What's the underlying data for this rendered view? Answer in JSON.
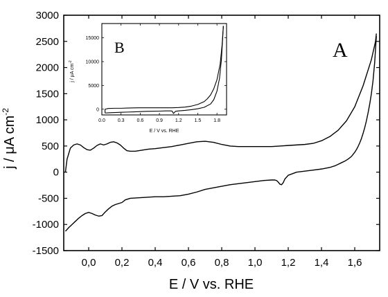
{
  "chart_data": [
    {
      "type": "line",
      "panel_label": "A",
      "xlabel": "E / V vs. RHE",
      "ylabel_main": "j / μA cm",
      "ylabel_sup": "-2",
      "xlim": [
        -0.15,
        1.75
      ],
      "ylim": [
        -1500,
        3000
      ],
      "x_ticks": [
        0.0,
        0.2,
        0.4,
        0.6,
        0.8,
        1.0,
        1.2,
        1.4,
        1.6
      ],
      "x_tick_labels": [
        "0,0",
        "0,2",
        "0,4",
        "0,6",
        "0,8",
        "1,0",
        "1,2",
        "1,4",
        "1,6"
      ],
      "y_ticks": [
        -1500,
        -1000,
        -500,
        0,
        500,
        1000,
        1500,
        2000,
        2500,
        3000
      ],
      "y_tick_labels": [
        "-1500",
        "-1000",
        "-500",
        "0",
        "500",
        "1000",
        "1500",
        "2000",
        "2500",
        "3000"
      ],
      "series": [
        {
          "x": [
            -0.14,
            -0.13,
            -0.11,
            -0.09,
            -0.07,
            -0.05,
            -0.03,
            -0.01,
            0.01,
            0.03,
            0.05,
            0.07,
            0.09,
            0.11,
            0.13,
            0.15,
            0.17,
            0.19,
            0.21,
            0.23,
            0.25,
            0.28,
            0.32,
            0.36,
            0.4,
            0.45,
            0.5,
            0.55,
            0.6,
            0.65,
            0.7,
            0.75,
            0.8,
            0.85,
            0.9,
            0.95,
            1.0,
            1.05,
            1.1,
            1.15,
            1.2,
            1.25,
            1.3,
            1.35,
            1.4,
            1.45,
            1.5,
            1.55,
            1.6,
            1.65,
            1.7,
            1.725,
            1.73
          ],
          "y": [
            0,
            250,
            460,
            520,
            540,
            520,
            470,
            430,
            420,
            460,
            510,
            540,
            520,
            540,
            570,
            580,
            560,
            520,
            460,
            410,
            400,
            400,
            420,
            440,
            450,
            470,
            490,
            520,
            550,
            580,
            590,
            570,
            530,
            500,
            490,
            490,
            490,
            490,
            490,
            500,
            510,
            520,
            530,
            550,
            600,
            680,
            800,
            980,
            1250,
            1650,
            2150,
            2500,
            2650
          ]
        },
        {
          "x": [
            1.73,
            1.72,
            1.71,
            1.7,
            1.69,
            1.68,
            1.67,
            1.66,
            1.65,
            1.64,
            1.63,
            1.62,
            1.61,
            1.6,
            1.58,
            1.56,
            1.54,
            1.52,
            1.5,
            1.48,
            1.45,
            1.4,
            1.35,
            1.3,
            1.25,
            1.2,
            1.18,
            1.17,
            1.16,
            1.15,
            1.14,
            1.13,
            1.12,
            1.1,
            1.05,
            1.0,
            0.95,
            0.9,
            0.85,
            0.8,
            0.75,
            0.7,
            0.65,
            0.6,
            0.55,
            0.5,
            0.45,
            0.4,
            0.35,
            0.3,
            0.25,
            0.22,
            0.2,
            0.18,
            0.16,
            0.14,
            0.12,
            0.1,
            0.08,
            0.06,
            0.04,
            0.02,
            0.0,
            -0.02,
            -0.04,
            -0.06,
            -0.08,
            -0.1,
            -0.12,
            -0.14
          ],
          "y": [
            2600,
            2100,
            1750,
            1500,
            1300,
            1130,
            980,
            850,
            740,
            640,
            560,
            490,
            430,
            380,
            300,
            250,
            210,
            180,
            150,
            120,
            90,
            60,
            40,
            20,
            0,
            -60,
            -130,
            -200,
            -240,
            -230,
            -190,
            -160,
            -150,
            -150,
            -160,
            -180,
            -200,
            -220,
            -240,
            -270,
            -300,
            -330,
            -380,
            -420,
            -450,
            -460,
            -470,
            -470,
            -480,
            -490,
            -500,
            -530,
            -580,
            -600,
            -620,
            -650,
            -700,
            -760,
            -830,
            -840,
            -820,
            -790,
            -770,
            -790,
            -830,
            -880,
            -940,
            -1000,
            -1060,
            -1130
          ]
        }
      ]
    },
    {
      "type": "line",
      "panel_label": "B",
      "xlabel": "E / V vs. RHE",
      "ylabel_main": "j / μA cm",
      "ylabel_sup": "-2",
      "xlim": [
        0,
        1.95
      ],
      "ylim": [
        -1200,
        18000
      ],
      "x_ticks": [
        0.0,
        0.3,
        0.6,
        0.9,
        1.2,
        1.5,
        1.8
      ],
      "x_tick_labels": [
        "0.0",
        "0.3",
        "0.6",
        "0.9",
        "1.2",
        "1.5",
        "1.8"
      ],
      "y_ticks": [
        0,
        5000,
        10000,
        15000
      ],
      "y_tick_labels": [
        "0",
        "5000",
        "10000",
        "15000"
      ],
      "series": [
        {
          "x": [
            0.05,
            0.05,
            0.1,
            0.2,
            0.3,
            0.4,
            0.5,
            0.6,
            0.7,
            0.8,
            0.9,
            1.0,
            1.1,
            1.2,
            1.3,
            1.4,
            1.5,
            1.6,
            1.65,
            1.7,
            1.75,
            1.8,
            1.85,
            1.88,
            1.9
          ],
          "y": [
            -800,
            0,
            150,
            200,
            200,
            250,
            280,
            300,
            300,
            300,
            300,
            300,
            300,
            350,
            450,
            650,
            1000,
            1600,
            2200,
            3000,
            4300,
            6200,
            9500,
            13500,
            17500
          ]
        },
        {
          "x": [
            1.9,
            1.87,
            1.84,
            1.8,
            1.75,
            1.7,
            1.6,
            1.5,
            1.4,
            1.3,
            1.2,
            1.15,
            1.12,
            1.1,
            1.08,
            1.0,
            0.9,
            0.8,
            0.7,
            0.6,
            0.5,
            0.4,
            0.3,
            0.2,
            0.1,
            0.05
          ],
          "y": [
            17500,
            10500,
            6500,
            3800,
            2000,
            1100,
            400,
            100,
            -100,
            -250,
            -350,
            -450,
            -900,
            -400,
            -350,
            -350,
            -400,
            -420,
            -450,
            -500,
            -550,
            -600,
            -650,
            -700,
            -750,
            -800
          ]
        }
      ]
    }
  ]
}
